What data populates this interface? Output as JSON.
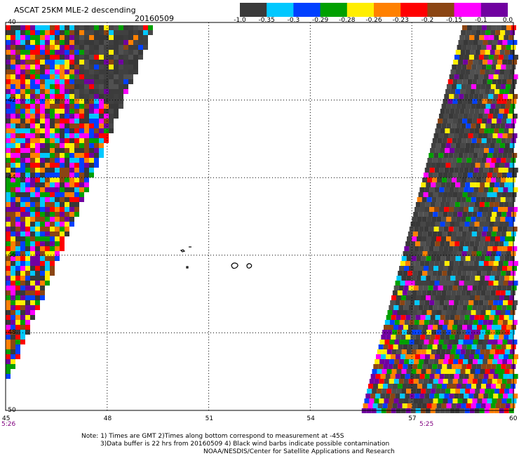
{
  "header": {
    "title": "ASCAT 25KM MLE-2 descending",
    "date": "20160509"
  },
  "colorbar": {
    "colors": [
      "#3a3a3a",
      "#00c8ff",
      "#0040ff",
      "#00a000",
      "#ffee00",
      "#ff8000",
      "#ff0000",
      "#8b4513",
      "#ff00ff",
      "#7000a0"
    ],
    "labels": [
      "-1.0",
      "-0.35",
      "-0.3",
      "-0.29",
      "-0.28",
      "-0.26",
      "-0.23",
      "-0.2",
      "-0.15",
      "-0.1",
      "0.0"
    ]
  },
  "axes": {
    "lon_ticks": [
      "45",
      "48",
      "51",
      "54",
      "57",
      "60"
    ],
    "lat_ticks": [
      "-40",
      "-42",
      "-44",
      "-46",
      "-48",
      "-50"
    ],
    "lon_range": [
      45,
      60
    ],
    "lat_range": [
      -50,
      -40
    ]
  },
  "swath_times": {
    "left": "5:26",
    "right": "5:25"
  },
  "notes": {
    "line1": "Note: 1) Times are GMT 2)Times along bottom correspond to measurement at -45S",
    "line2": "3)Data buffer is 22 hrs from 20160509 4) Black wind barbs indicate possible contamination",
    "line3": "NOAA/NESDIS/Center for Satellite Applications and Research"
  }
}
